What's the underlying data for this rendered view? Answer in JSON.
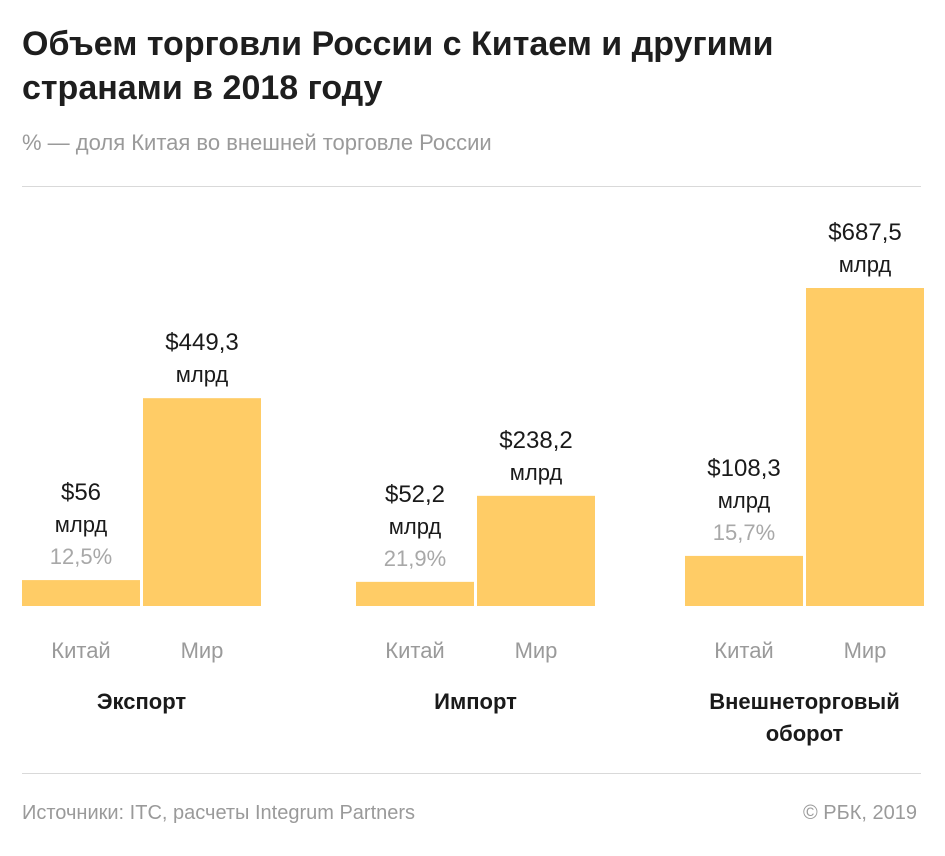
{
  "header": {
    "title": "Объем торговли России с Китаем и другими странами в 2018 году",
    "subtitle": "% — доля Китая во внешней торговле России"
  },
  "footer": {
    "source": "Источники: ITC, расчеты Integrum Partners",
    "copyright": "© РБК, 2019"
  },
  "colors": {
    "bar": "#ffcc66",
    "value_text": "#1a1a1a",
    "share_text": "#a8a8a8",
    "category_text": "#9a9a9a",
    "group_text": "#1a1a1a"
  },
  "chart_data": {
    "type": "bar",
    "unit": "млрд",
    "groups": [
      {
        "name": "Экспорт",
        "bars": [
          {
            "category": "Китай",
            "value": 56,
            "value_label": "$56",
            "unit_label": "млрд",
            "share": "12,5%"
          },
          {
            "category": "Мир",
            "value": 449.3,
            "value_label": "$449,3",
            "unit_label": "млрд"
          }
        ]
      },
      {
        "name": "Импорт",
        "bars": [
          {
            "category": "Китай",
            "value": 52.2,
            "value_label": "$52,2",
            "unit_label": "млрд",
            "share": "21,9%"
          },
          {
            "category": "Мир",
            "value": 238.2,
            "value_label": "$238,2",
            "unit_label": "млрд"
          }
        ]
      },
      {
        "name": "Внешнеторговый оборот",
        "name_lines": [
          "Внешнеторговый",
          "оборот"
        ],
        "bars": [
          {
            "category": "Китай",
            "value": 108.3,
            "value_label": "$108,3",
            "unit_label": "млрд",
            "share": "15,7%"
          },
          {
            "category": "Мир",
            "value": 687.5,
            "value_label": "$687,5",
            "unit_label": "млрд"
          }
        ]
      }
    ]
  }
}
